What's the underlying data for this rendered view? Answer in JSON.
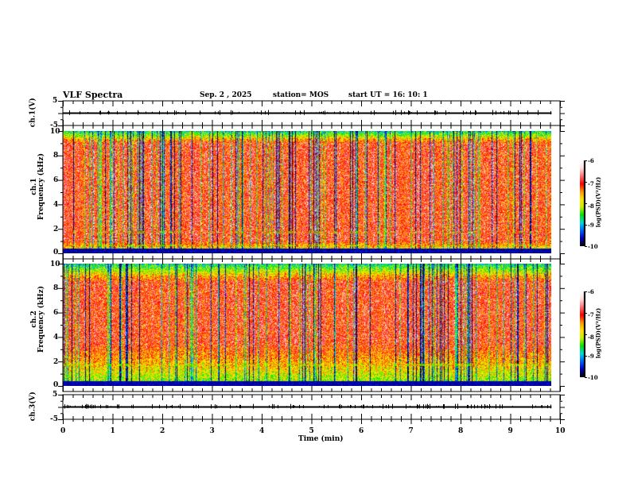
{
  "header": {
    "title": "VLF Spectra",
    "date": "Sep. 2  , 2025",
    "station": "station= MOS",
    "start": "start  UT  =   16: 10: 1"
  },
  "chart_data": {
    "type": "heatmap",
    "title": "VLF Spectra",
    "xlabel": "Time  (min)",
    "xlim": [
      0,
      10
    ],
    "x_ticks": [
      "0",
      "1",
      "2",
      "3",
      "4",
      "5",
      "6",
      "7",
      "8",
      "9",
      "10"
    ],
    "data_end_min": 9.83,
    "panels": [
      {
        "name": "ch1-waveform",
        "type": "line",
        "ylabel": "ch.1(V)",
        "ylim": [
          -5,
          5
        ],
        "y_ticks": [
          "5",
          "-5"
        ],
        "baseline_v": 0
      },
      {
        "name": "ch1-spectrogram",
        "type": "heatmap",
        "ylabel_line1": "ch.1",
        "ylabel_line2": "Frequency  (kHz)",
        "ylim": [
          0,
          10
        ],
        "y_ticks": [
          "0",
          "2",
          "4",
          "6",
          "8",
          "10"
        ],
        "colorbar": {
          "label": "log(PSD)(V²/Hz)",
          "range": [
            -10,
            -6
          ],
          "ticks": [
            "-6",
            "-7",
            "-8",
            "-9",
            "-10"
          ]
        },
        "peak_band_khz": [
          1,
          9
        ],
        "hum_lines_khz": [
          0.6,
          1.7
        ]
      },
      {
        "name": "ch2-spectrogram",
        "type": "heatmap",
        "ylabel_line1": "ch.2",
        "ylabel_line2": "Frequency  (kHz)",
        "ylim": [
          0,
          10
        ],
        "y_ticks": [
          "0",
          "2",
          "4",
          "6",
          "8",
          "10"
        ],
        "colorbar": {
          "label": "log(PSD)(V²/Hz)",
          "range": [
            -10,
            -6
          ],
          "ticks": [
            "-6",
            "-7",
            "-8",
            "-9",
            "-10"
          ]
        },
        "peak_band_khz": [
          3.5,
          8.5
        ],
        "hum_lines_khz": [
          1.7
        ]
      },
      {
        "name": "ch3-waveform",
        "type": "line",
        "ylabel": "ch.3(V)",
        "ylim": [
          -5,
          5
        ],
        "y_ticks": [
          "5",
          "-5"
        ],
        "baseline_v": 0
      }
    ]
  },
  "colors": {
    "colormap": [
      "#000000",
      "#0000c8",
      "#0064ff",
      "#00dcdc",
      "#00e600",
      "#c8f000",
      "#ffe600",
      "#ff9600",
      "#ff0000",
      "#ff6e6e",
      "#ffdcdc",
      "#ffffff"
    ]
  }
}
